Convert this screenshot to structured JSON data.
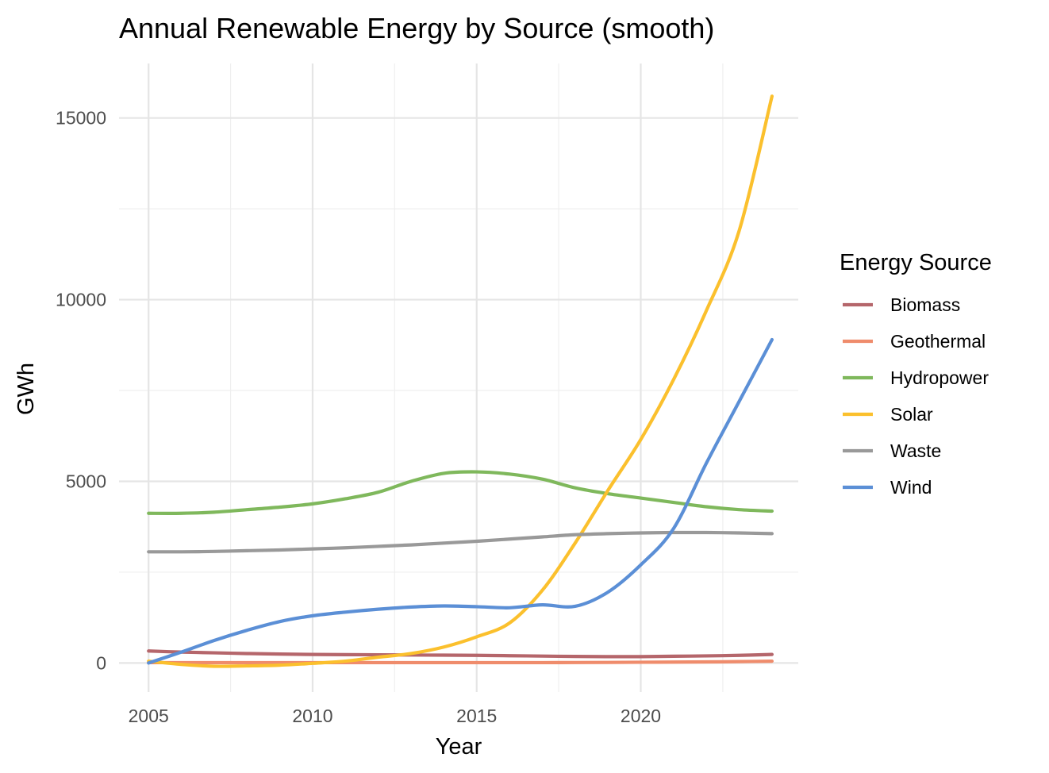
{
  "chart_data": {
    "type": "line",
    "title": "Annual Renewable Energy by Source (smooth)",
    "xlabel": "Year",
    "ylabel": "GWh",
    "xlim": [
      2004.1,
      2024.8
    ],
    "ylim": [
      -800,
      16500
    ],
    "x_ticks": [
      2005,
      2010,
      2015,
      2020
    ],
    "y_ticks": [
      0,
      5000,
      10000,
      15000
    ],
    "x_minor_ticks": [
      2007.5,
      2012.5,
      2017.5,
      2022.5
    ],
    "y_minor_ticks": [
      2500,
      7500,
      12500
    ],
    "grid": true,
    "legend": {
      "title": "Energy Source",
      "position": "right"
    },
    "x": [
      2005,
      2006,
      2007,
      2008,
      2009,
      2010,
      2011,
      2012,
      2013,
      2014,
      2015,
      2016,
      2017,
      2018,
      2019,
      2020,
      2021,
      2022,
      2023,
      2024
    ],
    "series": [
      {
        "name": "Biomass",
        "color": "#b5666b",
        "values": [
          330,
          300,
          280,
          260,
          245,
          235,
          230,
          225,
          220,
          215,
          210,
          200,
          190,
          180,
          175,
          175,
          185,
          195,
          210,
          235
        ]
      },
      {
        "name": "Geothermal",
        "color": "#ef8c6c",
        "values": [
          10,
          10,
          10,
          10,
          10,
          10,
          10,
          10,
          10,
          10,
          10,
          10,
          10,
          12,
          15,
          20,
          25,
          30,
          38,
          50
        ]
      },
      {
        "name": "Hydropower",
        "color": "#7fb85c",
        "values": [
          4120,
          4120,
          4150,
          4220,
          4290,
          4380,
          4520,
          4700,
          5000,
          5220,
          5260,
          5200,
          5060,
          4820,
          4660,
          4540,
          4420,
          4300,
          4220,
          4180
        ]
      },
      {
        "name": "Solar",
        "color": "#fbc02d",
        "values": [
          50,
          -40,
          -90,
          -80,
          -60,
          -10,
          50,
          160,
          260,
          440,
          720,
          1100,
          2000,
          3300,
          4750,
          6150,
          7800,
          9700,
          11900,
          15600
        ]
      },
      {
        "name": "Waste",
        "color": "#999999",
        "values": [
          3060,
          3060,
          3070,
          3090,
          3110,
          3140,
          3170,
          3210,
          3250,
          3300,
          3350,
          3410,
          3470,
          3530,
          3560,
          3580,
          3590,
          3590,
          3580,
          3560
        ]
      },
      {
        "name": "Wind",
        "color": "#5b8fd6",
        "values": [
          0,
          300,
          620,
          900,
          1140,
          1300,
          1400,
          1480,
          1540,
          1570,
          1550,
          1520,
          1600,
          1560,
          1950,
          2700,
          3700,
          5500,
          7200,
          8900
        ]
      }
    ]
  }
}
